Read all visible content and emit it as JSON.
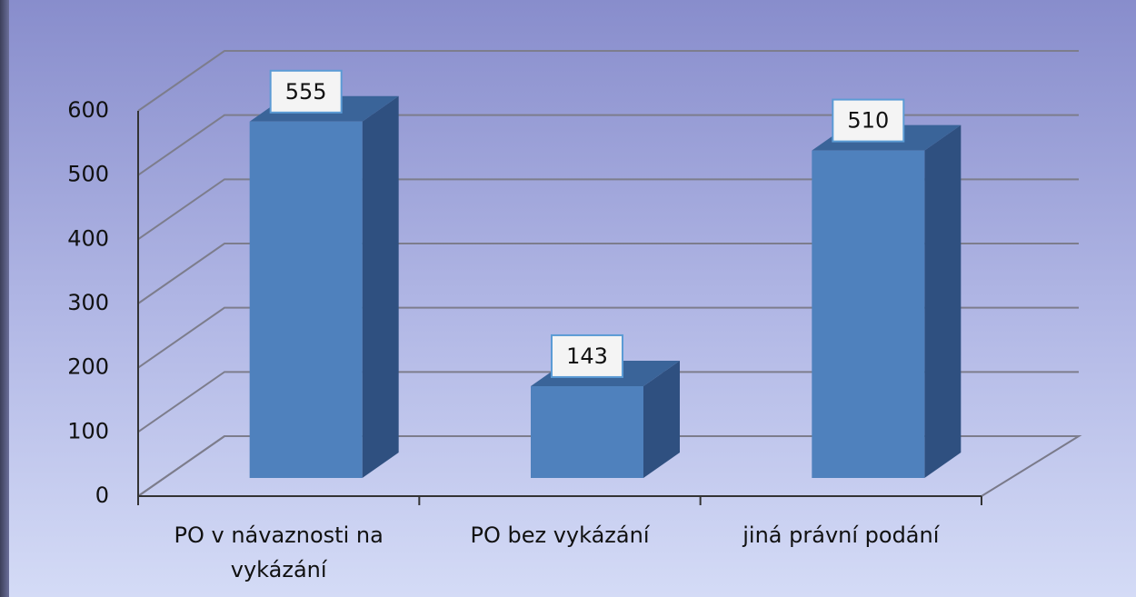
{
  "chart_data": {
    "type": "bar3d",
    "categories": [
      "PO v návaznosti na vykázání",
      "PO bez vykázání",
      "jiná právní podání"
    ],
    "values": [
      555,
      143,
      510
    ],
    "color": "#4f81bd",
    "ylim": [
      0,
      600
    ],
    "yticks": [
      0,
      100,
      200,
      300,
      400,
      500,
      600
    ],
    "grid": true
  }
}
